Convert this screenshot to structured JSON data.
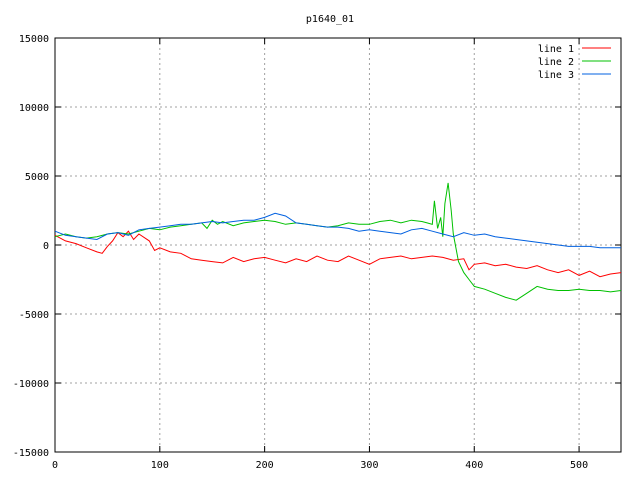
{
  "chart_data": {
    "type": "line",
    "title": "p1640_01",
    "xlabel": "",
    "ylabel": "",
    "xlim": [
      0,
      540
    ],
    "ylim": [
      -15000,
      15000
    ],
    "x_ticks": [
      0,
      100,
      200,
      300,
      400,
      500
    ],
    "y_ticks": [
      -15000,
      -10000,
      -5000,
      0,
      5000,
      10000,
      15000
    ],
    "grid": true,
    "legend_position": "top-right",
    "series": [
      {
        "name": "line 1",
        "color": "#ff0000",
        "x": [
          0,
          10,
          20,
          30,
          40,
          45,
          50,
          55,
          60,
          65,
          70,
          75,
          80,
          90,
          95,
          100,
          110,
          120,
          130,
          140,
          150,
          160,
          170,
          180,
          190,
          200,
          210,
          220,
          230,
          240,
          250,
          260,
          270,
          280,
          290,
          300,
          310,
          320,
          330,
          340,
          350,
          360,
          370,
          380,
          390,
          395,
          400,
          410,
          420,
          430,
          440,
          450,
          460,
          470,
          480,
          490,
          500,
          510,
          520,
          530,
          540
        ],
        "y": [
          700,
          300,
          100,
          -200,
          -500,
          -600,
          -100,
          300,
          900,
          600,
          1000,
          400,
          800,
          300,
          -400,
          -200,
          -500,
          -600,
          -1000,
          -1100,
          -1200,
          -1300,
          -900,
          -1200,
          -1000,
          -900,
          -1100,
          -1300,
          -1000,
          -1200,
          -800,
          -1100,
          -1200,
          -800,
          -1100,
          -1400,
          -1000,
          -900,
          -800,
          -1000,
          -900,
          -800,
          -900,
          -1100,
          -1000,
          -1800,
          -1400,
          -1300,
          -1500,
          -1400,
          -1600,
          -1700,
          -1500,
          -1800,
          -2000,
          -1800,
          -2200,
          -1900,
          -2300,
          -2100,
          -2000
        ]
      },
      {
        "name": "line 2",
        "color": "#00c000",
        "x": [
          0,
          10,
          20,
          30,
          40,
          50,
          60,
          70,
          80,
          90,
          100,
          110,
          120,
          130,
          140,
          145,
          150,
          155,
          160,
          170,
          180,
          190,
          200,
          210,
          220,
          230,
          240,
          250,
          260,
          270,
          280,
          290,
          300,
          310,
          320,
          330,
          340,
          350,
          355,
          360,
          362,
          365,
          368,
          370,
          372,
          375,
          378,
          380,
          385,
          390,
          395,
          400,
          410,
          420,
          430,
          440,
          450,
          460,
          470,
          480,
          490,
          500,
          510,
          520,
          530,
          540
        ],
        "y": [
          600,
          800,
          600,
          500,
          600,
          800,
          900,
          800,
          1000,
          1200,
          1100,
          1300,
          1400,
          1500,
          1600,
          1200,
          1800,
          1500,
          1700,
          1400,
          1600,
          1700,
          1800,
          1700,
          1500,
          1600,
          1500,
          1400,
          1300,
          1400,
          1600,
          1500,
          1500,
          1700,
          1800,
          1600,
          1800,
          1700,
          1600,
          1500,
          3200,
          1200,
          2000,
          600,
          3000,
          4500,
          2500,
          800,
          -1200,
          -2000,
          -2500,
          -3000,
          -3200,
          -3500,
          -3800,
          -4000,
          -3500,
          -3000,
          -3200,
          -3300,
          -3300,
          -3200,
          -3300,
          -3300,
          -3400,
          -3300
        ]
      },
      {
        "name": "line 3",
        "color": "#0060e0",
        "x": [
          0,
          10,
          20,
          30,
          40,
          50,
          60,
          70,
          80,
          90,
          100,
          110,
          120,
          130,
          140,
          150,
          160,
          170,
          180,
          190,
          200,
          210,
          220,
          230,
          240,
          250,
          260,
          270,
          280,
          290,
          300,
          310,
          320,
          330,
          340,
          350,
          360,
          370,
          380,
          390,
          400,
          410,
          420,
          430,
          440,
          450,
          460,
          470,
          480,
          490,
          500,
          510,
          520,
          530,
          540
        ],
        "y": [
          1000,
          700,
          600,
          500,
          400,
          800,
          900,
          700,
          1100,
          1200,
          1300,
          1400,
          1500,
          1500,
          1600,
          1700,
          1600,
          1700,
          1800,
          1800,
          2000,
          2300,
          2100,
          1600,
          1500,
          1400,
          1300,
          1300,
          1200,
          1000,
          1100,
          1000,
          900,
          800,
          1100,
          1200,
          1000,
          800,
          600,
          900,
          700,
          800,
          600,
          500,
          400,
          300,
          200,
          100,
          0,
          -100,
          -100,
          -100,
          -200,
          -200,
          -200
        ]
      }
    ]
  }
}
